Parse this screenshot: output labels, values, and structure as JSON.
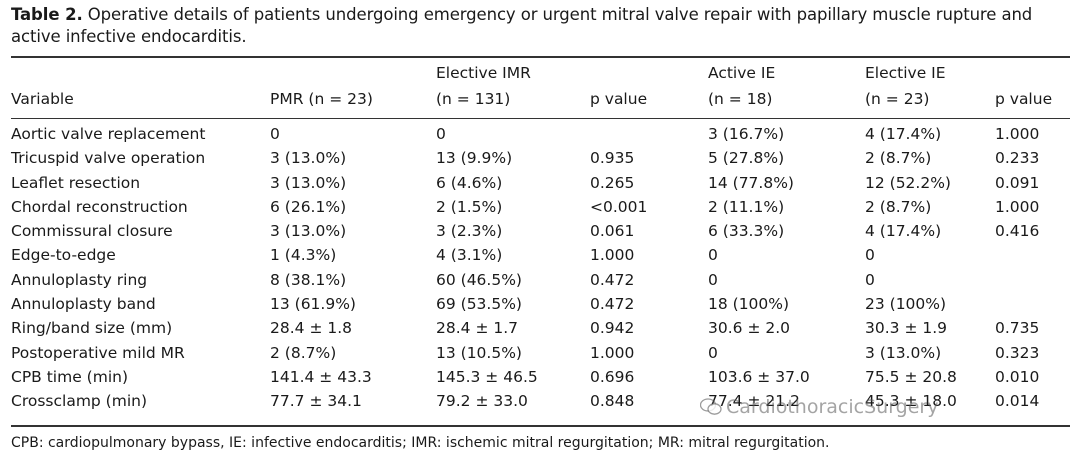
{
  "caption": {
    "label": "Table 2.",
    "text": "Operative details of patients undergoing emergency or urgent mitral valve repair with papillary muscle rupture and active infective endocarditis."
  },
  "columns": [
    {
      "line1": "",
      "line2": "Variable"
    },
    {
      "line1": "",
      "line2": "PMR (n = 23)"
    },
    {
      "line1": "Elective IMR",
      "line2": "(n = 131)"
    },
    {
      "line1": "",
      "line2": "p value"
    },
    {
      "line1": "Active IE",
      "line2": "(n = 18)"
    },
    {
      "line1": "Elective IE",
      "line2": "(n = 23)"
    },
    {
      "line1": "",
      "line2": "p value"
    }
  ],
  "rows": [
    [
      "Aortic valve replacement",
      "0",
      "0",
      "",
      "3 (16.7%)",
      "4 (17.4%)",
      "1.000"
    ],
    [
      "Tricuspid valve operation",
      "3 (13.0%)",
      "13 (9.9%)",
      "0.935",
      "5 (27.8%)",
      "2 (8.7%)",
      "0.233"
    ],
    [
      "Leaflet resection",
      "3 (13.0%)",
      "6 (4.6%)",
      "0.265",
      "14 (77.8%)",
      "12 (52.2%)",
      "0.091"
    ],
    [
      "Chordal reconstruction",
      "6 (26.1%)",
      "2 (1.5%)",
      "<0.001",
      "2 (11.1%)",
      "2 (8.7%)",
      "1.000"
    ],
    [
      "Commissural closure",
      "3 (13.0%)",
      "3 (2.3%)",
      "0.061",
      "6 (33.3%)",
      "4 (17.4%)",
      "0.416"
    ],
    [
      "Edge-to-edge",
      "1 (4.3%)",
      "4 (3.1%)",
      "1.000",
      "0",
      "0",
      ""
    ],
    [
      "Annuloplasty ring",
      "8 (38.1%)",
      "60 (46.5%)",
      "0.472",
      "0",
      "0",
      ""
    ],
    [
      "Annuloplasty band",
      "13 (61.9%)",
      "69 (53.5%)",
      "0.472",
      "18 (100%)",
      "23 (100%)",
      ""
    ],
    [
      "Ring/band size (mm)",
      "28.4 ± 1.8",
      "28.4 ± 1.7",
      "0.942",
      "30.6 ± 2.0",
      "30.3 ± 1.9",
      "0.735"
    ],
    [
      "Postoperative mild MR",
      "2 (8.7%)",
      "13 (10.5%)",
      "1.000",
      "0",
      "3 (13.0%)",
      "0.323"
    ],
    [
      "CPB time (min)",
      "141.4 ± 43.3",
      "145.3 ± 46.5",
      "0.696",
      "103.6 ± 37.0",
      "75.5 ± 20.8",
      "0.010"
    ],
    [
      "Crossclamp (min)",
      "77.7 ± 34.1",
      "79.2 ± 33.0",
      "0.848",
      "77.4 ± 21.2",
      "45.3 ± 18.0",
      "0.014"
    ]
  ],
  "footnote": "CPB: cardiopulmonary bypass, IE: infective endocarditis; IMR: ischemic mitral regurgitation; MR: mitral regurgitation.",
  "watermark": "CardiothoracicSurgery"
}
